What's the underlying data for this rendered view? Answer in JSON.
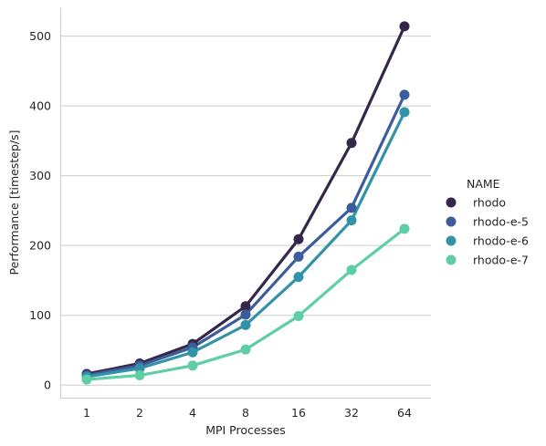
{
  "chart_data": {
    "type": "line",
    "title": "",
    "xlabel": "MPI Processes",
    "ylabel": "Performance [timestep/s]",
    "categories": [
      "1",
      "2",
      "4",
      "8",
      "16",
      "32",
      "64"
    ],
    "ylim": [
      -18,
      540
    ],
    "yticks": [
      0,
      100,
      200,
      300,
      400,
      500
    ],
    "grid": "horizontal",
    "legend_title": "NAME",
    "legend_position": "right",
    "series": [
      {
        "name": "rhodo",
        "color": "#35264c",
        "values": [
          16,
          31,
          59,
          113,
          209,
          347,
          514
        ]
      },
      {
        "name": "rhodo-e-5",
        "color": "#3b5d9c",
        "values": [
          14,
          28,
          54,
          101,
          184,
          254,
          416
        ]
      },
      {
        "name": "rhodo-e-6",
        "color": "#3393a6",
        "values": [
          12,
          24,
          47,
          86,
          155,
          236,
          391
        ]
      },
      {
        "name": "rhodo-e-7",
        "color": "#5fcea6",
        "values": [
          8,
          14,
          28,
          51,
          99,
          165,
          224
        ]
      }
    ]
  }
}
